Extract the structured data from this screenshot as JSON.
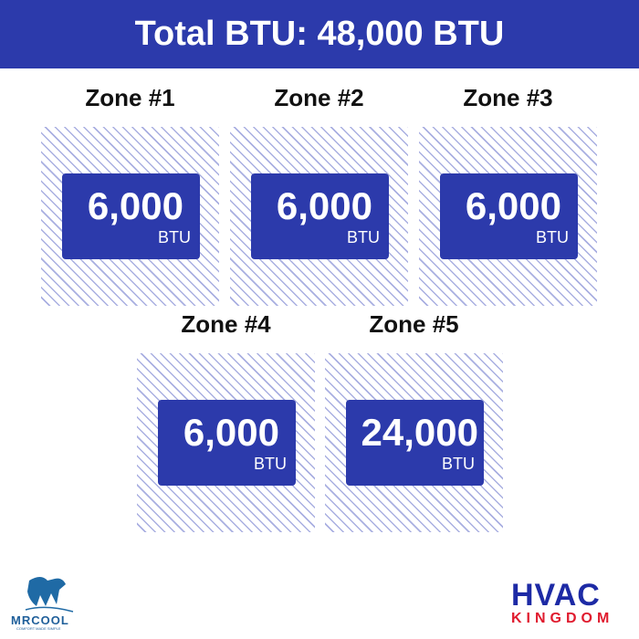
{
  "header": {
    "title": "Total BTU: 48,000 BTU"
  },
  "zones": [
    {
      "label": "Zone #1",
      "value": "6,000",
      "unit": "BTU"
    },
    {
      "label": "Zone #2",
      "value": "6,000",
      "unit": "BTU"
    },
    {
      "label": "Zone #3",
      "value": "6,000",
      "unit": "BTU"
    },
    {
      "label": "Zone #4",
      "value": "6,000",
      "unit": "BTU"
    },
    {
      "label": "Zone #5",
      "value": "24,000",
      "unit": "BTU"
    }
  ],
  "logos": {
    "mrcool": {
      "name": "MRCOOL",
      "tagline": "COMFORT MADE SIMPLE"
    },
    "hvac": {
      "line1": "HVAC",
      "line2": "KINGDOM"
    }
  },
  "colors": {
    "primary": "#2c3aab",
    "hatch": "#a9afe1",
    "accent_red": "#e01b2e"
  }
}
